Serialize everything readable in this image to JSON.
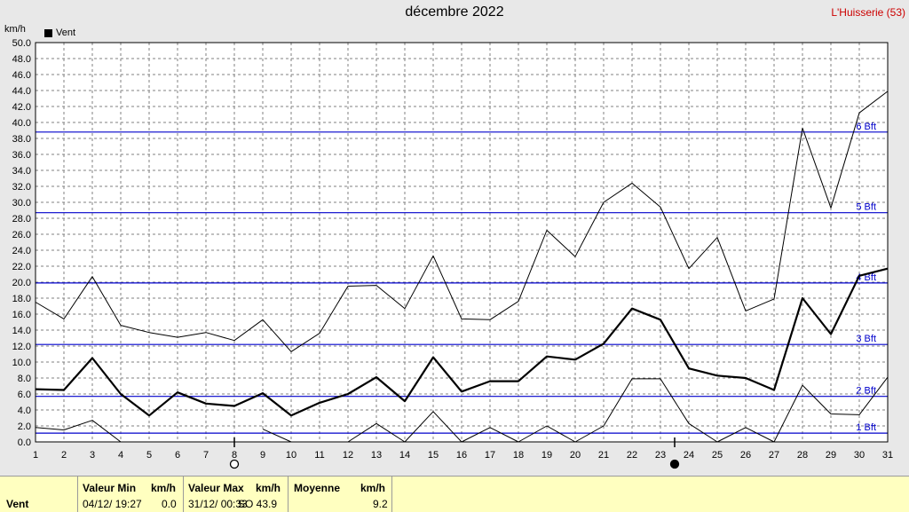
{
  "header": {
    "title": "décembre 2022",
    "site": "L'Huisserie (53)",
    "unit": "km/h"
  },
  "legend": {
    "label": "Vent",
    "color": "#000000"
  },
  "colors": {
    "background": "#e8e8e8",
    "plot_background": "#ffffff",
    "grid": "#808080",
    "beaufort_line": "#0000cc",
    "series": "#000000",
    "footer_background": "#ffffc0"
  },
  "moon_markers": [
    {
      "day": 8,
      "phase": "full-moon"
    },
    {
      "day": 23.5,
      "phase": "new-moon"
    }
  ],
  "chart_data": {
    "type": "line",
    "title": "décembre 2022",
    "ylabel": "km/h",
    "xlim": [
      1,
      31
    ],
    "ylim": [
      0,
      50
    ],
    "x": [
      1,
      2,
      3,
      4,
      5,
      6,
      7,
      8,
      9,
      10,
      11,
      12,
      13,
      14,
      15,
      16,
      17,
      18,
      19,
      20,
      21,
      22,
      23,
      24,
      25,
      26,
      27,
      28,
      29,
      30,
      31
    ],
    "y_ticks": [
      "0.0",
      "2.0",
      "4.0",
      "6.0",
      "8.0",
      "10.0",
      "12.0",
      "14.0",
      "16.0",
      "18.0",
      "20.0",
      "22.0",
      "24.0",
      "26.0",
      "28.0",
      "30.0",
      "32.0",
      "34.0",
      "36.0",
      "38.0",
      "40.0",
      "42.0",
      "44.0",
      "46.0",
      "48.0",
      "50.0"
    ],
    "x_ticks": [
      "1",
      "2",
      "3",
      "4",
      "5",
      "6",
      "7",
      "8",
      "9",
      "10",
      "11",
      "12",
      "13",
      "14",
      "15",
      "16",
      "17",
      "18",
      "19",
      "20",
      "21",
      "22",
      "23",
      "24",
      "25",
      "26",
      "27",
      "28",
      "29",
      "30",
      "31"
    ],
    "series": [
      {
        "name": "Vent",
        "role": "mean",
        "values": [
          6.6,
          6.5,
          10.5,
          6.0,
          3.3,
          6.2,
          4.8,
          4.5,
          6.1,
          3.3,
          4.9,
          6.0,
          8.1,
          5.1,
          10.6,
          6.3,
          7.6,
          7.6,
          10.7,
          10.3,
          12.3,
          16.7,
          15.3,
          9.2,
          8.3,
          8.0,
          6.5,
          18.0,
          13.5,
          20.8,
          21.7
        ]
      },
      {
        "role": "max",
        "values": [
          17.5,
          15.4,
          20.7,
          14.6,
          13.7,
          13.1,
          13.7,
          12.7,
          15.3,
          11.3,
          13.6,
          19.5,
          19.6,
          16.7,
          23.3,
          15.4,
          15.3,
          17.6,
          26.5,
          23.2,
          30.0,
          32.4,
          29.4,
          21.7,
          25.6,
          16.4,
          17.9,
          39.3,
          29.3,
          41.2,
          43.9
        ]
      },
      {
        "role": "min",
        "values": [
          1.8,
          1.5,
          2.7,
          0.0,
          null,
          null,
          null,
          null,
          1.6,
          0.0,
          null,
          0.0,
          2.3,
          0.0,
          3.8,
          0.0,
          1.8,
          0.0,
          2.0,
          0.0,
          2.0,
          7.9,
          7.9,
          2.3,
          0.0,
          1.8,
          0.0,
          7.1,
          3.5,
          3.4,
          8.1
        ]
      }
    ],
    "beaufort_lines": [
      {
        "label": "1 Bft",
        "value": 1.1
      },
      {
        "label": "2 Bft",
        "value": 5.7
      },
      {
        "label": "3 Bft",
        "value": 12.2
      },
      {
        "label": "4 Bft",
        "value": 19.9
      },
      {
        "label": "5 Bft",
        "value": 28.7
      },
      {
        "label": "6 Bft",
        "value": 38.8
      }
    ],
    "grid": true,
    "legend_position": "top-left"
  },
  "footer": {
    "row_label": "Vent",
    "min_header": "Valeur Min",
    "min_unit": "km/h",
    "min_date": "04/12/  19:27",
    "min_value": "0.0",
    "max_header": "Valeur Max",
    "max_unit": "km/h",
    "max_date": "31/12/  00:33",
    "max_value": "SO  43.9",
    "avg_header": "Moyenne",
    "avg_unit": "km/h",
    "avg_value": "9.2"
  }
}
